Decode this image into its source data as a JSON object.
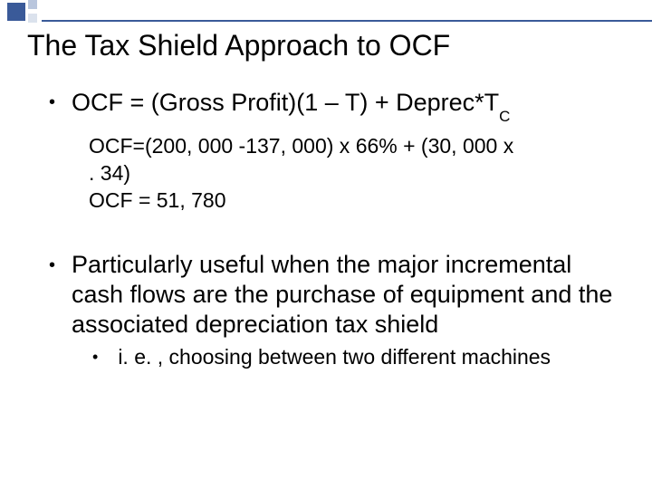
{
  "title": "The Tax Shield Approach to OCF",
  "bullets": {
    "formula_prefix": "OCF = (Gross Profit)(1 – T) + Deprec*T",
    "formula_sub": "C",
    "calc_line1": "OCF=(200, 000 -137, 000) x 66% + (30, 000 x",
    "calc_line2": ". 34)",
    "calc_line3": "OCF = 51, 780",
    "second": "Particularly useful when the major incremental cash flows are the purchase of equipment and the associated depreciation tax shield",
    "sub": "i. e. , choosing between two different machines"
  },
  "colors": {
    "accent": "#3a5a99",
    "light1": "#b9c6dd",
    "light2": "#dbe2ed",
    "text": "#000000",
    "background": "#ffffff"
  },
  "fonts": {
    "title_size": 32,
    "bullet_size": 27,
    "calc_size": 23,
    "subbullet_size": 23
  }
}
